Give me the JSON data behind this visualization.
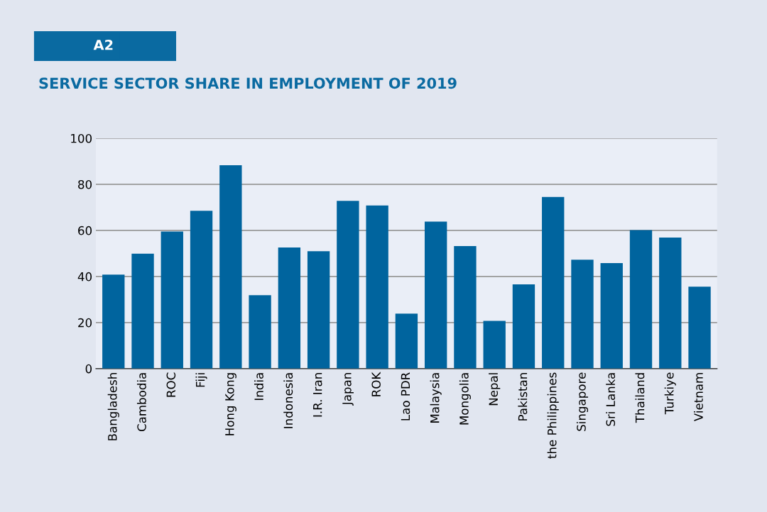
{
  "chart_data": {
    "type": "bar",
    "title": "SERVICE SECTOR SHARE IN EMPLOYMENT OF 2019",
    "annotations": [
      "A2"
    ],
    "categories": [
      "Bangladesh",
      "Cambodia",
      "ROC",
      "Fiji",
      "Hong Kong",
      "India",
      "Indonesia",
      "I.R. Iran",
      "Japan",
      "ROK",
      "Lao PDR",
      "Malaysia",
      "Mongolia",
      "Nepal",
      "Pakistan",
      "the Philippines",
      "Singapore",
      "Sri Lanka",
      "Thailand",
      "Turkiye",
      "Vietnam"
    ],
    "values": [
      40.8,
      49.9,
      59.5,
      68.5,
      88.3,
      31.9,
      52.6,
      51.0,
      72.8,
      70.8,
      23.9,
      63.8,
      53.2,
      20.7,
      36.6,
      74.5,
      47.3,
      45.8,
      60.1,
      56.9,
      35.6
    ],
    "color": "#00649e",
    "ylim": [
      0,
      100
    ],
    "yticks": [
      0,
      20,
      40,
      60,
      80,
      100
    ],
    "grid": "y"
  }
}
